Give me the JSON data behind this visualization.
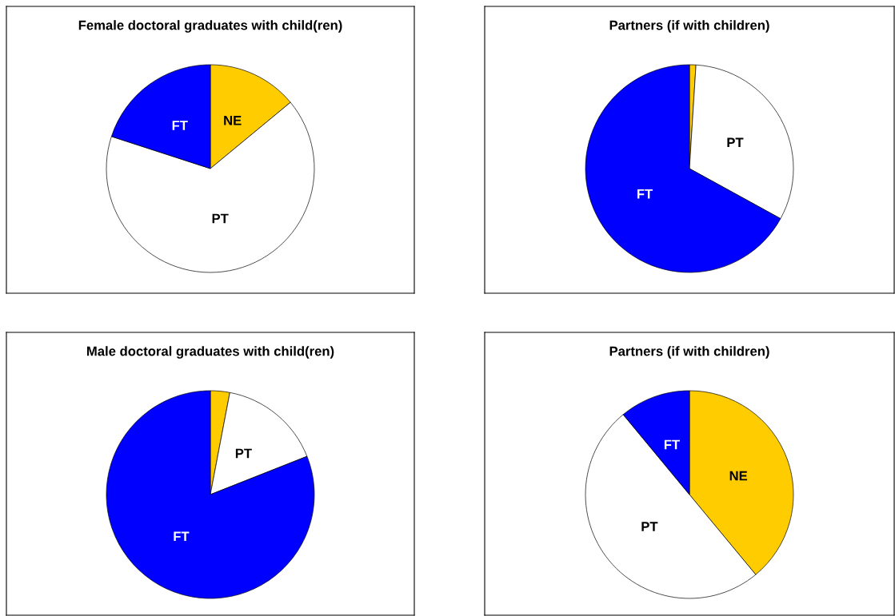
{
  "chart_data": [
    {
      "type": "pie",
      "title": "Female doctoral graduates with child(ren)",
      "categories": [
        "NE",
        "PT",
        "FT"
      ],
      "values": [
        14,
        66,
        20
      ],
      "colors": [
        "#ffcc00",
        "#ffffff",
        "#0000ff"
      ]
    },
    {
      "type": "pie",
      "title": "Partners (if with children)",
      "categories": [
        null,
        "PT",
        "FT"
      ],
      "values": [
        1,
        32,
        67
      ],
      "colors": [
        "#ffcc00",
        "#ffffff",
        "#0000ff"
      ]
    },
    {
      "type": "pie",
      "title": "Male doctoral graduates with child(ren)",
      "categories": [
        null,
        "PT",
        "FT"
      ],
      "values": [
        3,
        16,
        81
      ],
      "colors": [
        "#ffcc00",
        "#ffffff",
        "#0000ff"
      ]
    },
    {
      "type": "pie",
      "title": "Partners (if with children)",
      "categories": [
        "NE",
        "PT",
        "FT"
      ],
      "values": [
        39,
        50,
        11
      ],
      "colors": [
        "#ffcc00",
        "#ffffff",
        "#0000ff"
      ]
    }
  ]
}
